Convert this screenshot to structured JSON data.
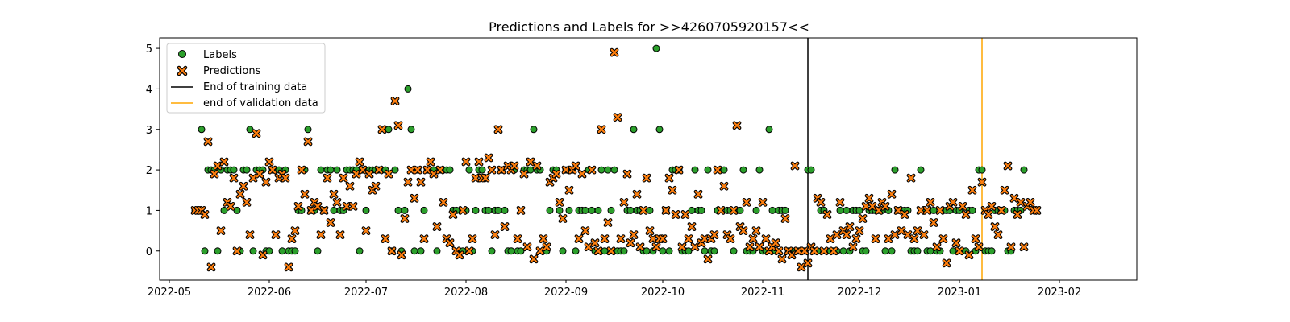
{
  "chart_data": {
    "type": "scatter",
    "title": "Predictions and Labels for >>4260705920157<<",
    "xlabel": "",
    "ylabel": "",
    "x_range": [
      "2022-04-28",
      "2023-02-25"
    ],
    "ylim": [
      -0.72,
      5.26
    ],
    "x_ticks": [
      "2022-05-01",
      "2022-06-01",
      "2022-07-01",
      "2022-08-01",
      "2022-09-01",
      "2022-10-01",
      "2022-11-01",
      "2022-12-01",
      "2023-01-01",
      "2023-02-01"
    ],
    "x_tick_labels": [
      "2022-05",
      "2022-06",
      "2022-07",
      "2022-08",
      "2022-09",
      "2022-10",
      "2022-11",
      "2022-12",
      "2023-01",
      "2023-02"
    ],
    "y_ticks": [
      0,
      1,
      2,
      3,
      4,
      5
    ],
    "y_tick_labels": [
      "0",
      "1",
      "2",
      "3",
      "4",
      "5"
    ],
    "grid": false,
    "legend_position": "upper-left",
    "start_date": "2022-05-09",
    "labels": [
      1,
      1,
      3,
      0,
      2,
      2,
      2,
      0,
      2,
      1,
      2,
      2,
      2,
      1,
      0,
      2,
      2,
      3,
      0,
      2,
      2,
      2,
      0,
      0,
      2,
      2,
      2,
      0,
      2,
      0,
      0,
      0,
      1,
      1,
      2,
      3,
      1,
      1,
      0,
      2,
      1,
      2,
      2,
      1,
      2,
      1,
      1,
      2,
      2,
      2,
      2,
      0,
      2,
      1,
      2,
      2,
      2,
      2,
      2,
      2,
      3,
      0,
      2,
      1,
      0,
      1,
      4,
      3,
      0,
      2,
      0,
      1,
      2,
      2,
      2,
      0,
      2,
      2,
      2,
      2,
      1,
      1,
      0,
      0,
      1,
      2,
      0,
      1,
      2,
      2,
      1,
      1,
      0,
      1,
      1,
      2,
      1,
      0,
      0,
      2,
      0,
      0,
      2,
      2,
      2,
      3,
      2,
      2,
      0,
      0,
      1,
      2,
      2,
      1,
      0,
      2,
      1,
      2,
      0,
      1,
      1,
      1,
      2,
      1,
      0,
      1,
      2,
      0,
      2,
      1,
      2,
      0,
      0,
      0,
      1,
      1,
      3,
      1,
      1,
      0,
      0,
      1,
      0,
      5,
      3,
      0,
      1,
      0,
      2,
      2,
      2,
      0,
      0,
      0,
      1,
      2,
      1,
      1,
      0,
      2,
      0,
      0,
      1,
      2,
      2,
      1,
      1,
      0,
      1,
      1,
      2,
      0,
      0,
      0,
      1,
      2,
      0,
      0,
      3,
      1,
      0,
      1,
      1,
      1,
      0,
      0,
      0,
      0,
      0,
      0,
      2,
      2,
      0,
      0,
      1,
      1,
      0,
      0,
      0,
      0,
      1,
      0,
      1,
      0,
      1,
      1,
      1,
      0,
      0,
      1,
      1,
      1,
      1,
      1,
      0,
      1,
      0,
      2,
      1,
      1,
      1,
      1,
      0,
      0,
      0,
      2,
      1,
      0,
      0,
      1,
      0,
      0,
      1,
      1,
      1,
      0,
      1,
      1,
      0,
      0,
      1,
      1,
      0,
      2,
      2,
      0,
      0,
      0,
      1,
      1,
      1,
      1,
      0,
      0,
      1,
      1,
      1,
      2
    ],
    "predictions": [
      1.0,
      1.0,
      1.0,
      0.9,
      2.7,
      -0.4,
      1.9,
      2.1,
      0.5,
      2.2,
      1.2,
      1.1,
      1.8,
      0.0,
      1.4,
      1.6,
      1.2,
      0.4,
      1.8,
      2.9,
      1.9,
      -0.1,
      1.7,
      2.2,
      2.0,
      0.4,
      1.8,
      1.9,
      1.8,
      -0.4,
      0.3,
      0.5,
      1.1,
      2.0,
      1.4,
      2.7,
      1.0,
      1.2,
      1.1,
      0.4,
      1.0,
      1.8,
      0.7,
      1.4,
      1.2,
      0.4,
      1.8,
      1.1,
      1.6,
      1.1,
      1.9,
      2.2,
      2.0,
      0.5,
      1.9,
      1.5,
      1.6,
      2.0,
      3.0,
      0.3,
      1.9,
      0.0,
      3.7,
      3.1,
      -0.1,
      0.8,
      1.7,
      2.0,
      1.3,
      2.0,
      1.7,
      0.3,
      2.0,
      2.2,
      1.9,
      0.6,
      2.0,
      1.2,
      0.3,
      0.2,
      0.9,
      0.0,
      -0.1,
      1.0,
      2.2,
      0.0,
      0.3,
      1.8,
      2.2,
      1.8,
      1.8,
      2.3,
      2.0,
      0.4,
      3.0,
      2.0,
      0.6,
      2.1,
      2.0,
      2.1,
      0.3,
      1.0,
      1.9,
      0.1,
      2.2,
      -0.2,
      2.1,
      0.0,
      0.3,
      0.1,
      1.7,
      1.8,
      1.9,
      1.2,
      0.8,
      2.0,
      1.5,
      2.0,
      2.1,
      0.3,
      1.9,
      0.5,
      0.1,
      2.0,
      0.2,
      0.0,
      3.0,
      0.3,
      0.7,
      0.0,
      4.9,
      3.3,
      0.3,
      1.2,
      1.9,
      0.2,
      0.4,
      1.4,
      0.1,
      1.0,
      1.8,
      0.5,
      0.3,
      0.1,
      0.3,
      0.3,
      1.0,
      1.8,
      1.5,
      0.9,
      2.0,
      0.1,
      0.9,
      0.3,
      0.6,
      0.1,
      1.4,
      0.2,
      0.3,
      -0.2,
      0.3,
      0.4,
      2.0,
      1.0,
      1.6,
      0.4,
      0.3,
      1.0,
      3.1,
      0.6,
      0.5,
      1.2,
      0.1,
      0.3,
      0.5,
      0.1,
      1.2,
      0.3,
      0.0,
      0.1,
      0.2,
      0.0,
      -0.2,
      0.8,
      0.0,
      -0.1,
      2.1,
      0.0,
      -0.4,
      0.0,
      -0.3,
      0.1,
      0.0,
      1.3,
      1.2,
      0.0,
      0.9,
      0.3,
      0.0,
      0.4,
      1.2,
      0.5,
      0.4,
      0.6,
      0.1,
      0.3,
      0.5,
      0.8,
      1.1,
      1.3,
      1.1,
      0.3,
      1.0,
      1.2,
      1.1,
      0.3,
      1.4,
      0.4,
      1.0,
      0.5,
      0.9,
      0.4,
      1.8,
      0.3,
      0.5,
      1.0,
      0.4,
      1.0,
      1.2,
      0.7,
      0.1,
      1.0,
      0.3,
      -0.3,
      1.1,
      1.2,
      0.2,
      0.0,
      1.1,
      0.9,
      -0.1,
      1.5,
      0.3,
      0.1,
      1.7,
      1.0,
      0.9,
      1.1,
      0.6,
      0.4,
      1.0,
      1.5,
      2.1,
      0.1,
      1.3,
      0.9,
      1.2,
      0.1,
      1.1,
      1.2,
      1.0,
      1.0
    ],
    "series": [
      {
        "name": "Labels",
        "marker": "circle",
        "color": "#2ca02c"
      },
      {
        "name": "Predictions",
        "marker": "x",
        "color": "#ff7f0e"
      }
    ],
    "vlines": [
      {
        "name": "End of training data",
        "date": "2022-11-15",
        "color": "#000000"
      },
      {
        "name": "end of validation data",
        "date": "2023-01-08",
        "color": "#ffa500"
      }
    ]
  }
}
